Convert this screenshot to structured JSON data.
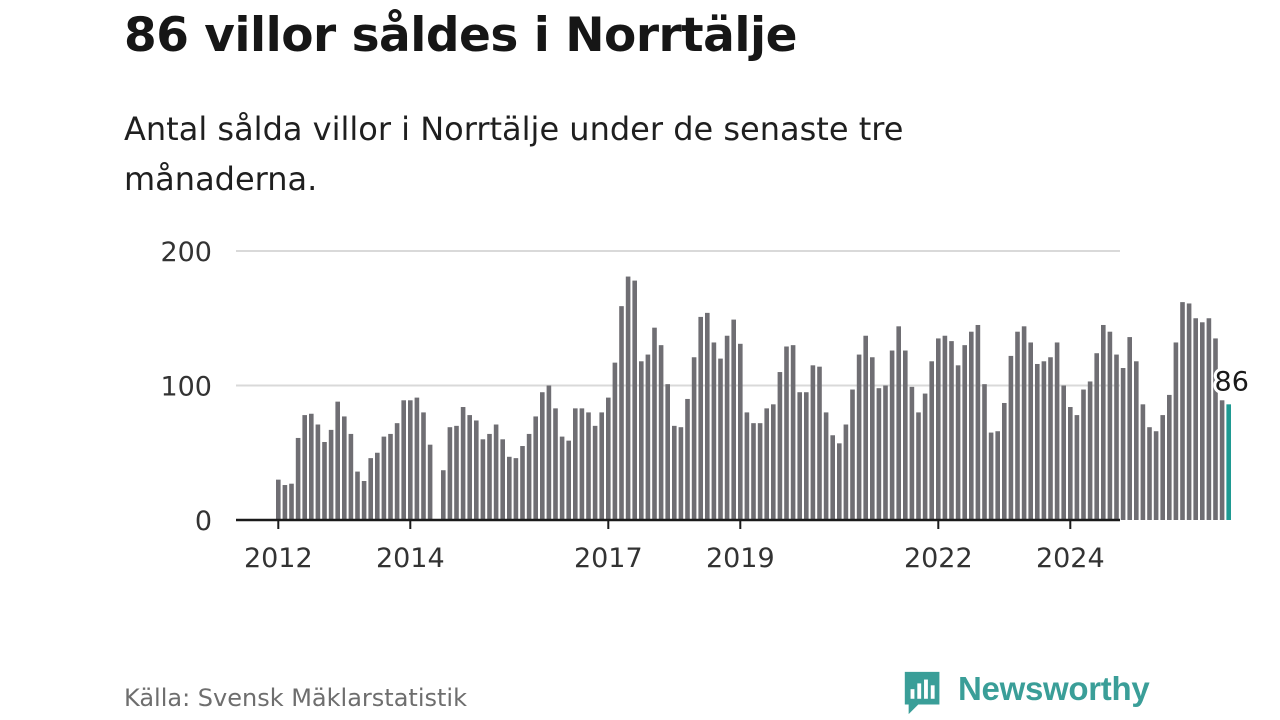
{
  "title": "86 villor såldes i Norrtälje",
  "subtitle": "Antal sålda villor i Norrtälje under de senaste tre månaderna.",
  "source": "Källa: Svensk Mäklarstatistik",
  "brand": "Newsworthy",
  "brand_icon": "newsworthy-chart-bubble-icon",
  "colors": {
    "bar": "#6f6e73",
    "highlight": "#1f9a92",
    "grid": "#d9d9d9",
    "axis": "#1a1a1a",
    "brand": "#3a9e98"
  },
  "chart_data": {
    "type": "bar",
    "title": "86 villor såldes i Norrtälje",
    "xlabel": "",
    "ylabel": "",
    "ylim": [
      0,
      200
    ],
    "yticks": [
      "0",
      "100",
      "200"
    ],
    "xticks": [
      {
        "label": "2012",
        "index": 0
      },
      {
        "label": "2014",
        "index": 20
      },
      {
        "label": "2017",
        "index": 50
      },
      {
        "label": "2019",
        "index": 70
      },
      {
        "label": "2022",
        "index": 100
      },
      {
        "label": "2024",
        "index": 120
      }
    ],
    "values": [
      30,
      26,
      27,
      61,
      78,
      79,
      71,
      58,
      67,
      88,
      77,
      64,
      36,
      29,
      46,
      50,
      62,
      64,
      72,
      89,
      89,
      91,
      80,
      56,
      0,
      37,
      69,
      70,
      84,
      78,
      74,
      60,
      64,
      71,
      60,
      47,
      46,
      55,
      64,
      77,
      95,
      100,
      83,
      62,
      59,
      83,
      83,
      80,
      70,
      80,
      91,
      117,
      159,
      181,
      178,
      118,
      123,
      143,
      130,
      101,
      70,
      69,
      90,
      121,
      151,
      154,
      132,
      120,
      137,
      149,
      131,
      80,
      72,
      72,
      83,
      86,
      110,
      129,
      130,
      95,
      95,
      115,
      114,
      80,
      63,
      57,
      71,
      97,
      123,
      137,
      121,
      98,
      100,
      126,
      144,
      126,
      99,
      80,
      94,
      118,
      135,
      137,
      133,
      115,
      130,
      140,
      145,
      101,
      65,
      66,
      87,
      122,
      140,
      144,
      132,
      116,
      118,
      121,
      132,
      100,
      84,
      78,
      97,
      103,
      124,
      145,
      140,
      123,
      113,
      136,
      118,
      86,
      69,
      66,
      78,
      93,
      132,
      162,
      161,
      150,
      147,
      150,
      135,
      89,
      86
    ],
    "highlight_last": true,
    "last_label": "86"
  }
}
